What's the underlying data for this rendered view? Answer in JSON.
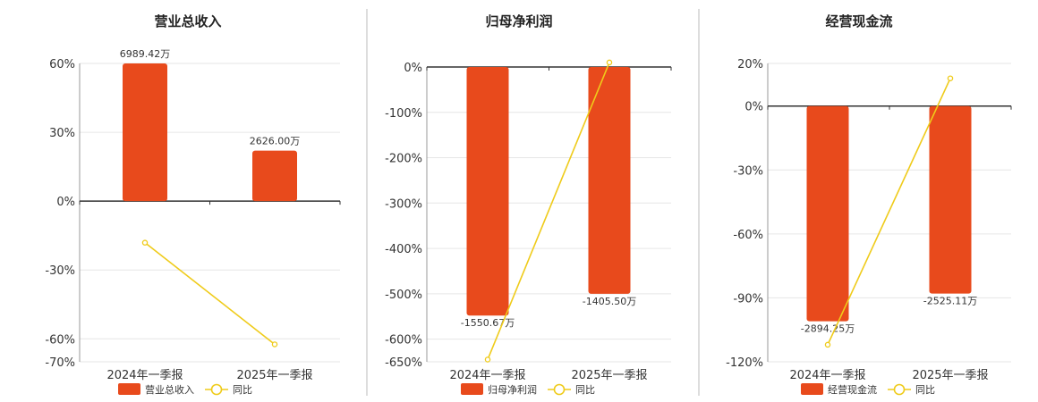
{
  "colors": {
    "bar": "#E84A1C",
    "line": "#EFCB1A",
    "grid": "#E6E6E6",
    "axis": "#333333",
    "divider": "#BBBBBB"
  },
  "chart_data": [
    {
      "type": "bar",
      "title": "营业总收入",
      "categories": [
        "2024年一季报",
        "2025年一季报"
      ],
      "series": [
        {
          "name": "营业总收入",
          "type": "bar",
          "values": [
            60,
            22
          ],
          "labels": [
            "6989.42万",
            "2626.00万"
          ]
        },
        {
          "name": "同比",
          "type": "line",
          "values": [
            -18.1,
            -62.4
          ]
        }
      ],
      "yticks": [
        60,
        30,
        0,
        -30,
        -60,
        -70
      ],
      "ytick_labels": [
        "60%",
        "30%",
        "0%",
        "-30%",
        "-60%",
        "-70%"
      ],
      "ylim": [
        -70,
        60
      ],
      "grid": true,
      "legend_position": "bottom"
    },
    {
      "type": "bar",
      "title": "归母净利润",
      "categories": [
        "2024年一季报",
        "2025年一季报"
      ],
      "series": [
        {
          "name": "归母净利润",
          "type": "bar",
          "values": [
            -548,
            -500
          ],
          "labels": [
            "-1550.67万",
            "-1405.50万"
          ]
        },
        {
          "name": "同比",
          "type": "line",
          "values": [
            -645,
            10
          ]
        }
      ],
      "yticks": [
        0,
        -100,
        -200,
        -300,
        -400,
        -500,
        -600,
        -650
      ],
      "ytick_labels": [
        "0%",
        "-100%",
        "-200%",
        "-300%",
        "-400%",
        "-500%",
        "-600%",
        "-650%"
      ],
      "ylim": [
        -650,
        0
      ],
      "grid": true,
      "legend_position": "bottom"
    },
    {
      "type": "bar",
      "title": "经营现金流",
      "categories": [
        "2024年一季报",
        "2025年一季报"
      ],
      "series": [
        {
          "name": "经营现金流",
          "type": "bar",
          "values": [
            -101,
            -88
          ],
          "labels": [
            "-2894.25万",
            "-2525.11万"
          ]
        },
        {
          "name": "同比",
          "type": "line",
          "values": [
            -112,
            13
          ]
        }
      ],
      "yticks": [
        20,
        0,
        -30,
        -60,
        -90,
        -120
      ],
      "ytick_labels": [
        "20%",
        "0%",
        "-30%",
        "-60%",
        "-90%",
        "-120%"
      ],
      "ylim": [
        -120,
        20
      ],
      "grid": true,
      "legend_position": "bottom"
    }
  ]
}
